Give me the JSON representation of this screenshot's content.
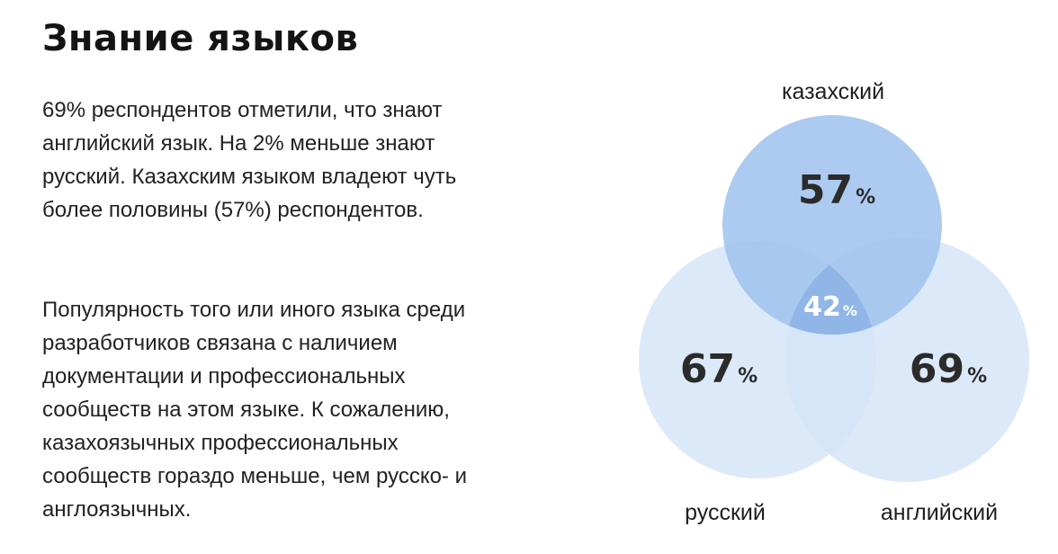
{
  "title": "Знание языков",
  "paragraph1": "69% респондентов отметили, что знают английский язык. На 2% меньше знают русский. Казахским языком владеют чуть более половины (57%) респондентов.",
  "paragraph2": "Популярность того или иного языка среди разработчиков связана с наличием документации и профессиональных сообществ на этом языке. К сожалению, казахоязычных профессиональных сообществ гораздо меньше, чем русско- и англоязычных.",
  "venn": {
    "circles": [
      {
        "label": "казахский",
        "value": "57",
        "unit": "%",
        "color": "#a9c8ef"
      },
      {
        "label": "русский",
        "value": "67",
        "unit": "%",
        "color": "#d6e5f8"
      },
      {
        "label": "английский",
        "value": "69",
        "unit": "%",
        "color": "#d6e5f8"
      }
    ],
    "intersection": {
      "value": "42",
      "unit": "%",
      "color": "#8fb6e6"
    }
  }
}
